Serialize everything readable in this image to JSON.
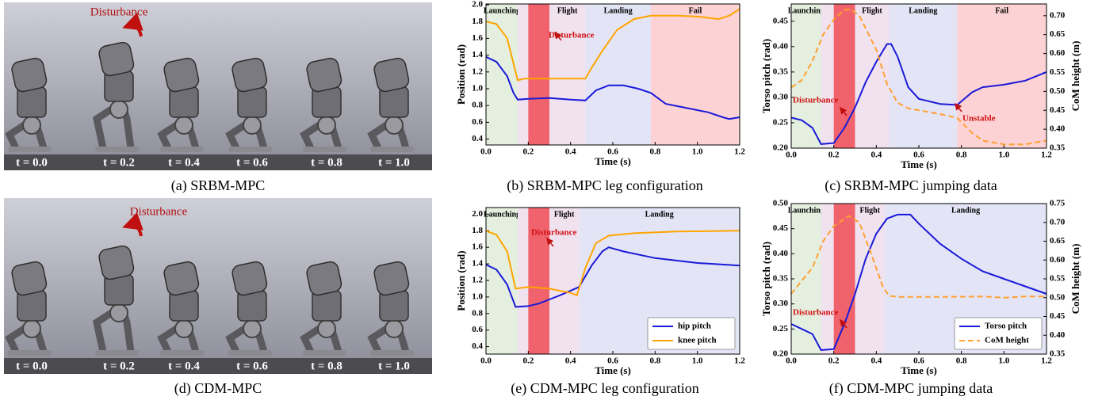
{
  "panels": [
    {
      "caption": "(a) SRBM-MPC",
      "annotation": "Disturbance",
      "times": [
        "t = 0.0",
        "t = 0.2",
        "t = 0.4",
        "t = 0.6",
        "t = 0.8",
        "t = 1.0"
      ]
    },
    {
      "caption": "(d) CDM-MPC",
      "annotation": "Disturbance",
      "times": [
        "t = 0.0",
        "t = 0.2",
        "t = 0.4",
        "t = 0.6",
        "t = 0.8",
        "t = 1.0"
      ]
    }
  ],
  "chart_data": [
    {
      "type": "line",
      "caption": "(b) SRBM-MPC leg configuration",
      "xlabel": "Time (s)",
      "ylabel": "Position (rad)",
      "xlim": [
        0,
        1.2
      ],
      "xticks": [
        {
          "value": 0,
          "label": "0.0"
        },
        0.2,
        0.4,
        0.6,
        0.8,
        {
          "value": 1,
          "label": "1.0"
        },
        1.2
      ],
      "ylim": [
        0.33,
        2.01
      ],
      "yticks": [
        0.4,
        0.6,
        0.8,
        {
          "value": 1,
          "label": "1.0"
        },
        1.2,
        1.4,
        1.6,
        1.8,
        {
          "value": 2,
          "label": "2.0"
        }
      ],
      "regions": [
        {
          "label": "Launching",
          "start": 0,
          "end": 0.15,
          "color": "#e4efe0"
        },
        {
          "label": null,
          "start": 0.15,
          "end": 0.2,
          "color": "#f1e2ef"
        },
        {
          "label": null,
          "start": 0.2,
          "end": 0.3,
          "color": "#f0626c"
        },
        {
          "label": "Flight",
          "start": 0.3,
          "end": 0.47,
          "color": "#f1e2ef"
        },
        {
          "label": "Landing",
          "start": 0.47,
          "end": 0.78,
          "color": "#e4e4f7"
        },
        {
          "label": "Fail",
          "start": 0.78,
          "end": 1.2,
          "color": "#fdd2d4"
        }
      ],
      "annotations": [
        "Disturbance"
      ],
      "series": [
        {
          "color": "#1a1ad8",
          "linestyle": "solid",
          "x": [
            0,
            0.05,
            0.1,
            0.13,
            0.15,
            0.2,
            0.3,
            0.4,
            0.47,
            0.52,
            0.58,
            0.65,
            0.72,
            0.78,
            0.85,
            0.95,
            1.05,
            1.12,
            1.15,
            1.2
          ],
          "values": [
            1.38,
            1.32,
            1.15,
            0.95,
            0.87,
            0.88,
            0.89,
            0.87,
            0.86,
            0.98,
            1.04,
            1.04,
            1.0,
            0.95,
            0.82,
            0.77,
            0.72,
            0.66,
            0.64,
            0.66
          ]
        },
        {
          "color": "#ffa500",
          "linestyle": "solid",
          "x": [
            0,
            0.05,
            0.1,
            0.13,
            0.15,
            0.18,
            0.3,
            0.47,
            0.5,
            0.55,
            0.62,
            0.7,
            0.78,
            0.9,
            1.0,
            1.1,
            1.15,
            1.2
          ],
          "values": [
            1.8,
            1.77,
            1.6,
            1.3,
            1.1,
            1.12,
            1.12,
            1.12,
            1.25,
            1.45,
            1.7,
            1.83,
            1.87,
            1.87,
            1.86,
            1.83,
            1.87,
            1.95
          ]
        }
      ]
    },
    {
      "type": "line",
      "caption": "(c) SRBM-MPC jumping data",
      "xlabel": "Time (s)",
      "ylabel": "Torso pitch (rad)",
      "y2label": "CoM height (m)",
      "xlim": [
        0,
        1.2
      ],
      "xticks": [
        {
          "value": 0,
          "label": "0.0"
        },
        0.2,
        0.4,
        0.6,
        0.8,
        {
          "value": 1,
          "label": "1.0"
        },
        1.2
      ],
      "ylim": [
        0.2,
        0.484
      ],
      "yticks": [
        {
          "value": 0.2,
          "label": "0.20"
        },
        0.25,
        {
          "value": 0.3,
          "label": "0.30"
        },
        0.35,
        {
          "value": 0.4,
          "label": "0.40"
        },
        0.45
      ],
      "y2lim": [
        0.35,
        0.731
      ],
      "y2ticks": [
        0.35,
        {
          "value": 0.4,
          "label": "0.40"
        },
        0.45,
        {
          "value": 0.5,
          "label": "0.50"
        },
        0.55,
        {
          "value": 0.6,
          "label": "0.60"
        },
        0.65,
        {
          "value": 0.7,
          "label": "0.70"
        }
      ],
      "regions": [
        {
          "label": "Launching",
          "start": 0,
          "end": 0.14,
          "color": "#e4efe0"
        },
        {
          "label": null,
          "start": 0.14,
          "end": 0.2,
          "color": "#f1e2ef"
        },
        {
          "label": null,
          "start": 0.2,
          "end": 0.3,
          "color": "#f0626c"
        },
        {
          "label": "Flight",
          "start": 0.3,
          "end": 0.46,
          "color": "#f1e2ef"
        },
        {
          "label": "Landing",
          "start": 0.46,
          "end": 0.78,
          "color": "#e4e4f7"
        },
        {
          "label": "Fail",
          "start": 0.78,
          "end": 1.2,
          "color": "#fdd2d4"
        }
      ],
      "annotations": [
        "Disturbance",
        "Unstable"
      ],
      "series": [
        {
          "color": "#1a1ad8",
          "linestyle": "solid",
          "x": [
            0,
            0.05,
            0.1,
            0.14,
            0.2,
            0.25,
            0.3,
            0.35,
            0.4,
            0.45,
            0.47,
            0.5,
            0.55,
            0.6,
            0.7,
            0.78,
            0.85,
            0.9,
            1.0,
            1.1,
            1.2
          ],
          "values": [
            0.26,
            0.255,
            0.24,
            0.208,
            0.21,
            0.24,
            0.28,
            0.33,
            0.37,
            0.405,
            0.405,
            0.38,
            0.32,
            0.297,
            0.287,
            0.285,
            0.31,
            0.32,
            0.325,
            0.333,
            0.35
          ]
        },
        {
          "color": "#ffa030",
          "linestyle": "dashed",
          "axis": "y2",
          "x": [
            0,
            0.05,
            0.1,
            0.15,
            0.2,
            0.25,
            0.28,
            0.32,
            0.4,
            0.45,
            0.5,
            0.55,
            0.6,
            0.7,
            0.78,
            0.85,
            0.9,
            1.0,
            1.1,
            1.2
          ],
          "values": [
            0.51,
            0.53,
            0.58,
            0.65,
            0.69,
            0.715,
            0.717,
            0.7,
            0.61,
            0.52,
            0.47,
            0.455,
            0.45,
            0.44,
            0.43,
            0.39,
            0.37,
            0.36,
            0.36,
            0.37
          ]
        }
      ]
    },
    {
      "type": "line",
      "caption": "(e) CDM-MPC leg configuration",
      "xlabel": "Time (s)",
      "ylabel": "Position (rad)",
      "legend": "lower right",
      "xlim": [
        0,
        1.2
      ],
      "xticks": [
        {
          "value": 0,
          "label": "0.0"
        },
        0.2,
        0.4,
        0.6,
        0.8,
        {
          "value": 1,
          "label": "1.0"
        },
        1.2
      ],
      "ylim": [
        0.31,
        2.08
      ],
      "yticks": [
        0.4,
        0.6,
        0.8,
        {
          "value": 1,
          "label": "1.0"
        },
        1.2,
        1.4,
        1.6,
        1.8,
        {
          "value": 2,
          "label": "2.0"
        }
      ],
      "regions": [
        {
          "label": "Launching",
          "start": 0,
          "end": 0.15,
          "color": "#e4efe0"
        },
        {
          "label": null,
          "start": 0.15,
          "end": 0.2,
          "color": "#f1e2ef"
        },
        {
          "label": null,
          "start": 0.2,
          "end": 0.3,
          "color": "#f0626c"
        },
        {
          "label": "Flight",
          "start": 0.3,
          "end": 0.44,
          "color": "#f1e2ef"
        },
        {
          "label": "Landing",
          "start": 0.44,
          "end": 1.2,
          "color": "#e4e4f7"
        }
      ],
      "annotations": [
        "Disturbance"
      ],
      "series": [
        {
          "name": "hip pitch",
          "color": "#1a1ad8",
          "linestyle": "solid",
          "x": [
            0,
            0.05,
            0.1,
            0.14,
            0.2,
            0.25,
            0.3,
            0.35,
            0.44,
            0.5,
            0.55,
            0.58,
            0.65,
            0.8,
            1.0,
            1.2
          ],
          "values": [
            1.39,
            1.33,
            1.15,
            0.88,
            0.89,
            0.92,
            0.97,
            1.02,
            1.12,
            1.38,
            1.55,
            1.6,
            1.55,
            1.47,
            1.41,
            1.38
          ]
        },
        {
          "name": "knee pitch",
          "color": "#ffa500",
          "linestyle": "solid",
          "x": [
            0,
            0.05,
            0.1,
            0.14,
            0.2,
            0.3,
            0.4,
            0.43,
            0.47,
            0.52,
            0.58,
            0.7,
            0.9,
            1.2
          ],
          "values": [
            1.8,
            1.75,
            1.55,
            1.1,
            1.12,
            1.1,
            1.05,
            1.02,
            1.35,
            1.65,
            1.74,
            1.77,
            1.79,
            1.8
          ]
        }
      ]
    },
    {
      "type": "line",
      "caption": "(f) CDM-MPC jumping data",
      "xlabel": "Time (s)",
      "ylabel": "Torso pitch (rad)",
      "y2label": "CoM height (m)",
      "legend": "lower right",
      "xlim": [
        0,
        1.2
      ],
      "xticks": [
        {
          "value": 0,
          "label": "0.0"
        },
        0.2,
        0.4,
        0.6,
        0.8,
        {
          "value": 1,
          "label": "1.0"
        },
        1.2
      ],
      "ylim": [
        0.2,
        0.5
      ],
      "yticks": [
        {
          "value": 0.2,
          "label": "0.20"
        },
        0.25,
        {
          "value": 0.3,
          "label": "0.30"
        },
        0.35,
        {
          "value": 0.4,
          "label": "0.40"
        },
        0.45,
        {
          "value": 0.5,
          "label": "0.50"
        }
      ],
      "y2lim": [
        0.35,
        0.75
      ],
      "y2ticks": [
        0.35,
        {
          "value": 0.4,
          "label": "0.40"
        },
        0.45,
        {
          "value": 0.5,
          "label": "0.50"
        },
        0.55,
        {
          "value": 0.6,
          "label": "0.60"
        },
        0.65,
        {
          "value": 0.7,
          "label": "0.70"
        },
        0.75
      ],
      "regions": [
        {
          "label": "Launching",
          "start": 0,
          "end": 0.14,
          "color": "#e4efe0"
        },
        {
          "label": null,
          "start": 0.14,
          "end": 0.2,
          "color": "#f1e2ef"
        },
        {
          "label": null,
          "start": 0.2,
          "end": 0.3,
          "color": "#f0626c"
        },
        {
          "label": "Flight",
          "start": 0.3,
          "end": 0.44,
          "color": "#f1e2ef"
        },
        {
          "label": "Landing",
          "start": 0.44,
          "end": 1.2,
          "color": "#e4e4f7"
        }
      ],
      "annotations": [
        "Disturbance"
      ],
      "series": [
        {
          "name": "Torso pitch",
          "color": "#1a1ad8",
          "linestyle": "solid",
          "x": [
            0,
            0.1,
            0.14,
            0.2,
            0.25,
            0.3,
            0.35,
            0.4,
            0.45,
            0.5,
            0.56,
            0.6,
            0.7,
            0.8,
            0.9,
            1.0,
            1.1,
            1.2
          ],
          "values": [
            0.26,
            0.24,
            0.208,
            0.21,
            0.26,
            0.32,
            0.39,
            0.44,
            0.47,
            0.478,
            0.478,
            0.46,
            0.42,
            0.39,
            0.365,
            0.35,
            0.335,
            0.32
          ]
        },
        {
          "name": "CoM height",
          "color": "#ffa030",
          "linestyle": "dashed",
          "axis": "y2",
          "x": [
            0,
            0.1,
            0.15,
            0.2,
            0.27,
            0.32,
            0.38,
            0.43,
            0.46,
            0.5,
            0.7,
            0.9,
            1.0,
            1.1,
            1.2
          ],
          "values": [
            0.51,
            0.58,
            0.65,
            0.69,
            0.717,
            0.7,
            0.61,
            0.53,
            0.505,
            0.502,
            0.502,
            0.503,
            0.5,
            0.503,
            0.503
          ]
        }
      ]
    }
  ]
}
